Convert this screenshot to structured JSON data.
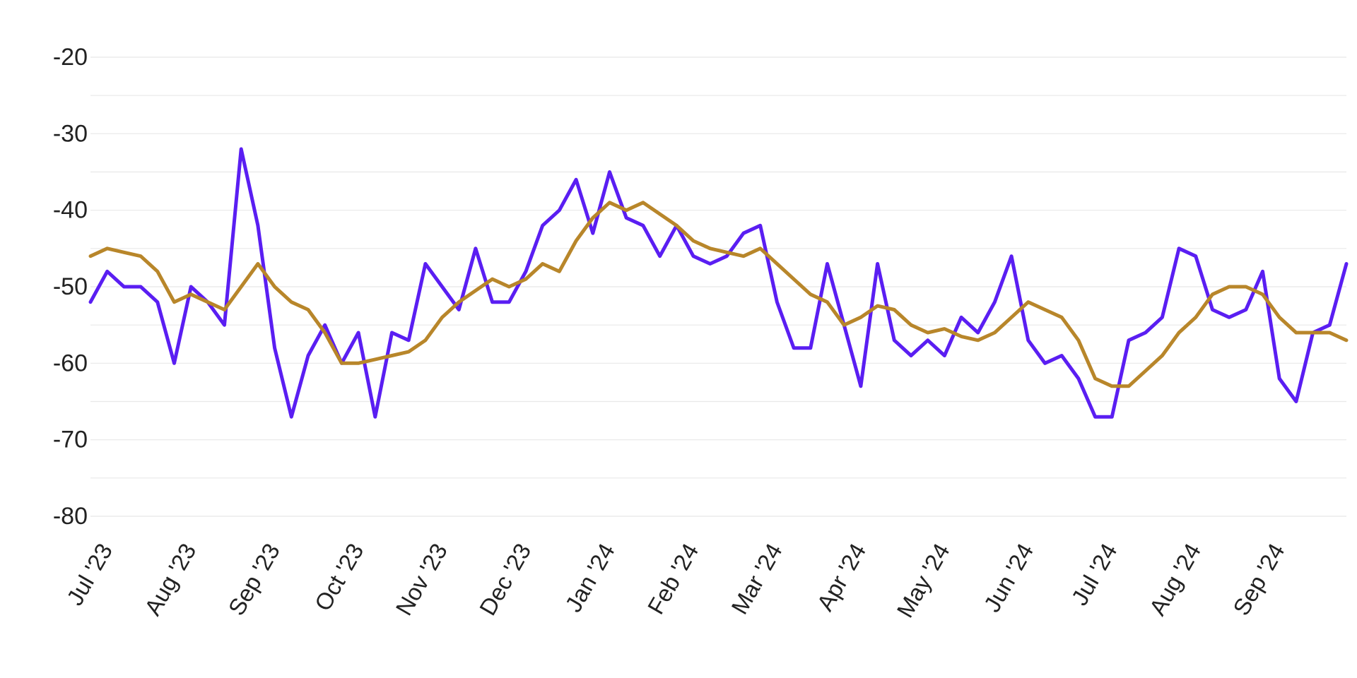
{
  "chart_data": {
    "type": "line",
    "xlim": [
      0,
      75
    ],
    "xticks": [
      {
        "value": 0,
        "label": "Jul '23"
      },
      {
        "value": 5,
        "label": "Aug '23"
      },
      {
        "value": 10,
        "label": "Sep '23"
      },
      {
        "value": 15,
        "label": "Oct '23"
      },
      {
        "value": 20,
        "label": "Nov '23"
      },
      {
        "value": 25,
        "label": "Dec '23"
      },
      {
        "value": 30,
        "label": "Jan '24"
      },
      {
        "value": 35,
        "label": "Feb '24"
      },
      {
        "value": 40,
        "label": "Mar '24"
      },
      {
        "value": 45,
        "label": "Apr '24"
      },
      {
        "value": 50,
        "label": "May '24"
      },
      {
        "value": 55,
        "label": "Jun '24"
      },
      {
        "value": 60,
        "label": "Jul '24"
      },
      {
        "value": 65,
        "label": "Aug '24"
      },
      {
        "value": 70,
        "label": "Sep '24"
      }
    ],
    "ylim": [
      -80,
      -20
    ],
    "yticks": [
      -20,
      -30,
      -40,
      -50,
      -60,
      -70,
      -80
    ],
    "yminor": [
      -25,
      -35,
      -45,
      -55,
      -65,
      -75
    ],
    "grid": true,
    "series": [
      {
        "color": "#5a1ef2",
        "values": [
          -52,
          -48,
          -50,
          -50,
          -52,
          -60,
          -50,
          -52,
          -55,
          -32,
          -42,
          -58,
          -67,
          -59,
          -55,
          -60,
          -56,
          -67,
          -56,
          -57,
          -47,
          -50,
          -53,
          -45,
          -52,
          -52,
          -48,
          -42,
          -40,
          -36,
          -43,
          -35,
          -41,
          -42,
          -46,
          -42,
          -46,
          -47,
          -46,
          -43,
          -42,
          -52,
          -58,
          -58,
          -47,
          -55,
          -63,
          -47,
          -57,
          -59,
          -57,
          -59,
          -54,
          -56,
          -52,
          -46,
          -57,
          -60,
          -59,
          -62,
          -67,
          -67,
          -57,
          -56,
          -54,
          -45,
          -46,
          -53,
          -54,
          -53,
          -48,
          -62,
          -65,
          -56,
          -55,
          -47
        ]
      },
      {
        "color": "#b8862a",
        "values": [
          -46,
          -45,
          -45.5,
          -46,
          -48,
          -52,
          -51,
          -52,
          -53,
          -50,
          -47,
          -50,
          -52,
          -53,
          -56,
          -60,
          -60,
          -59.5,
          -59,
          -58.5,
          -57,
          -54,
          -52,
          -50.5,
          -49,
          -50,
          -49,
          -47,
          -48,
          -44,
          -41,
          -39,
          -40,
          -39,
          -40.5,
          -42,
          -44,
          -45,
          -45.5,
          -46,
          -45,
          -47,
          -49,
          -51,
          -52,
          -55,
          -54,
          -52.5,
          -53,
          -55,
          -56,
          -55.5,
          -56.5,
          -57,
          -56,
          -54,
          -52,
          -53,
          -54,
          -57,
          -62,
          -63,
          -63,
          -61,
          -59,
          -56,
          -54,
          -51,
          -50,
          -50,
          -51,
          -54,
          -56,
          -56,
          -56,
          -57
        ]
      }
    ]
  }
}
